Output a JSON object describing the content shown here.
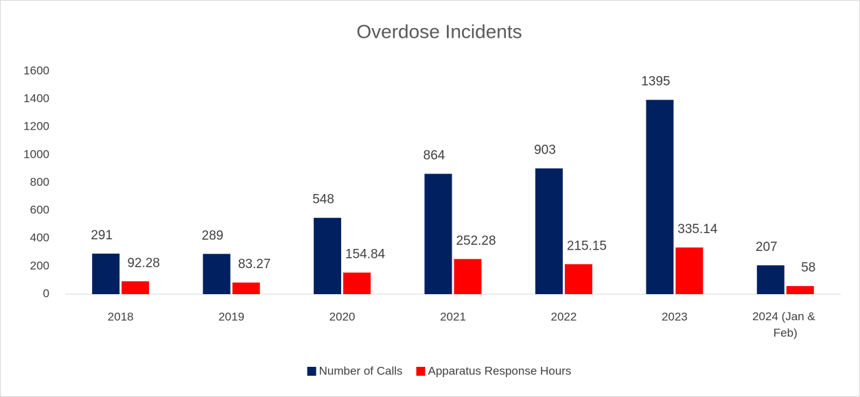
{
  "chart_data": {
    "type": "bar",
    "title": "Overdose Incidents",
    "categories": [
      "2018",
      "2019",
      "2020",
      "2021",
      "2022",
      "2023",
      "2024 (Jan & Feb)"
    ],
    "series": [
      {
        "name": "Number of Calls",
        "color": "#002060",
        "values": [
          291,
          289,
          548,
          864,
          903,
          1395,
          207
        ]
      },
      {
        "name": "Apparatus Response Hours",
        "color": "#ff0000",
        "values": [
          92.28,
          83.27,
          154.84,
          252.28,
          215.15,
          335.14,
          58
        ]
      }
    ],
    "ylim": [
      0,
      1600
    ],
    "yticks": [
      0,
      200,
      400,
      600,
      800,
      1000,
      1200,
      1400,
      1600
    ],
    "grid": false,
    "legend": "bottom"
  }
}
